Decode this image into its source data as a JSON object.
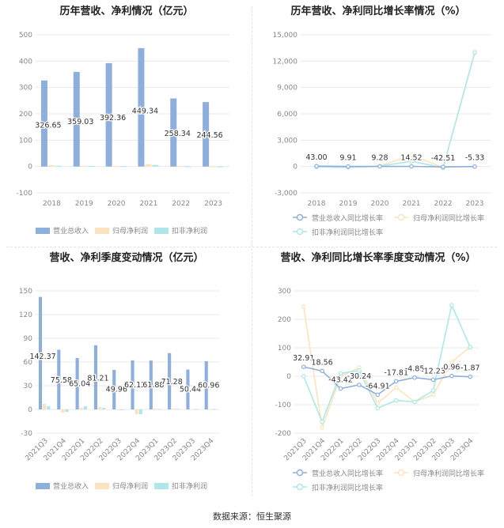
{
  "source": "数据来源：恒生聚源",
  "colors": {
    "revenue": "#8eaedb",
    "profit": "#fde3bd",
    "deducted": "#aee7ea",
    "grid": "#e8e8e8",
    "axis": "#999999"
  },
  "chart_data": [
    {
      "type": "bar",
      "title": "历年营收、净利情况（亿元）",
      "categories": [
        "2018",
        "2019",
        "2020",
        "2021",
        "2022",
        "2023"
      ],
      "ylim": [
        -100,
        500
      ],
      "yticks": [
        -100,
        0,
        100,
        200,
        300,
        400,
        500
      ],
      "series": [
        {
          "name": "营业总收入",
          "values": [
            326.65,
            359.03,
            392.36,
            449.34,
            258.34,
            244.56
          ],
          "labels": [
            "326.65",
            "359.03",
            "392.36",
            "449.34",
            "258.34",
            "244.56"
          ]
        },
        {
          "name": "归母净利润",
          "values": [
            5,
            3,
            2,
            9,
            2,
            -2
          ]
        },
        {
          "name": "扣非净利润",
          "values": [
            3,
            2,
            1,
            6,
            1,
            -3
          ]
        }
      ],
      "legend": "bottom"
    },
    {
      "type": "line",
      "title": "历年营收、净利同比增长率情况（%）",
      "categories": [
        "2018",
        "2019",
        "2020",
        "2021",
        "2022",
        "2023"
      ],
      "ylim": [
        -3000,
        15000
      ],
      "yticks": [
        -3000,
        0,
        3000,
        6000,
        9000,
        12000,
        15000
      ],
      "ytick_labels": [
        "-3,000",
        "0",
        "3,000",
        "6,000",
        "9,000",
        "12,000",
        "15,000"
      ],
      "series": [
        {
          "name": "营业总收入同比增长率",
          "values": [
            43.0,
            9.91,
            9.28,
            14.52,
            -42.51,
            -5.33
          ],
          "labels": [
            "43.00",
            "9.91",
            "9.28",
            "14.52",
            "-42.51",
            "-5.33"
          ]
        },
        {
          "name": "归母净利润同比增长率",
          "values": [
            -20,
            -80,
            50,
            1300,
            -120,
            12900
          ]
        },
        {
          "name": "扣非净利润同比增长率",
          "values": [
            -40,
            -100,
            30,
            600,
            -150,
            13000
          ]
        }
      ],
      "legend": "bottom"
    },
    {
      "type": "bar",
      "title": "营收、净利季度变动情况（亿元）",
      "categories": [
        "2021Q3",
        "2021Q4",
        "2022Q1",
        "2022Q2",
        "2022Q3",
        "2022Q4",
        "2023Q1",
        "2023Q2",
        "2023Q3",
        "2023Q4"
      ],
      "ylim": [
        -30,
        150
      ],
      "yticks": [
        -30,
        0,
        30,
        60,
        90,
        120,
        150
      ],
      "series": [
        {
          "name": "营业总收入",
          "values": [
            142.37,
            75.58,
            65.04,
            81.21,
            49.96,
            62.12,
            61.88,
            71.28,
            50.44,
            60.96
          ],
          "labels": [
            "142.37",
            "75.58",
            "65.04",
            "81.21",
            "49.96",
            "62.12",
            "61.88",
            "71.28",
            "50.44",
            "60.96"
          ]
        },
        {
          "name": "归母净利润",
          "values": [
            7,
            -4,
            2,
            3,
            -1,
            -6,
            1,
            1,
            0.5,
            0.4
          ]
        },
        {
          "name": "扣非净利润",
          "values": [
            4,
            -3,
            4,
            2,
            -1,
            -6,
            0.5,
            0.8,
            0.3,
            0.3
          ]
        }
      ],
      "legend": "bottom"
    },
    {
      "type": "line",
      "title": "营收、净利同比增长率季度变动情况（%）",
      "categories": [
        "2021Q3",
        "2021Q4",
        "2022Q1",
        "2022Q2",
        "2022Q3",
        "2022Q4",
        "2023Q1",
        "2023Q2",
        "2023Q3",
        "2023Q4"
      ],
      "ylim": [
        -200,
        300
      ],
      "yticks": [
        -200,
        -100,
        0,
        100,
        200,
        300
      ],
      "series": [
        {
          "name": "营业总收入同比增长率",
          "values": [
            32.91,
            18.56,
            -43.42,
            -30.24,
            -64.91,
            -17.81,
            -4.85,
            -12.23,
            0.96,
            -1.87
          ],
          "labels": [
            "32.91",
            "18.56",
            "-43.42",
            "-30.24",
            "-64.91",
            "-17.81",
            "-4.85",
            "-12.23",
            "0.96",
            "-1.87"
          ]
        },
        {
          "name": "归母净利润同比增长率",
          "values": [
            245,
            -180,
            0,
            30,
            -95,
            -40,
            -90,
            -65,
            50,
            103
          ]
        },
        {
          "name": "扣非净利润同比增长率",
          "values": [
            0,
            -160,
            10,
            20,
            -112,
            -85,
            -90,
            -50,
            250,
            102
          ]
        }
      ],
      "legend": "bottom"
    }
  ]
}
